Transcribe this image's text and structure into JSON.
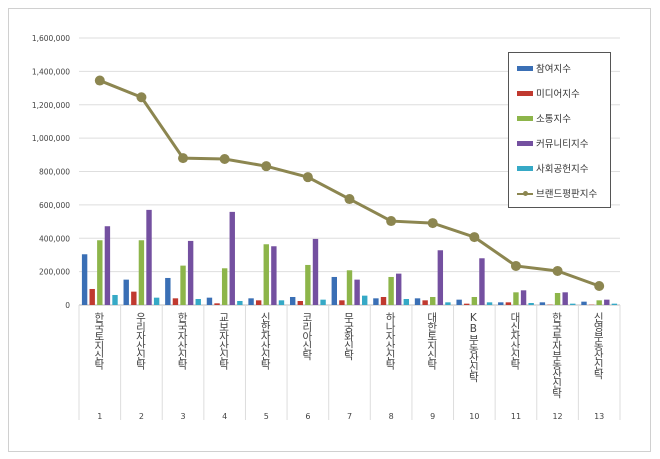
{
  "chart_data": {
    "type": "bar+line",
    "title": "",
    "xlabel": "",
    "ylabel": "",
    "ylim": [
      0,
      1600000
    ],
    "yticks": [
      "0",
      "200,000",
      "400,000",
      "600,000",
      "800,000",
      "1,000,000",
      "1,200,000",
      "1,400,000",
      "1,600,000"
    ],
    "ytick_values": [
      0,
      200000,
      400000,
      600000,
      800000,
      1000000,
      1200000,
      1400000,
      1600000
    ],
    "grid": true,
    "legend_position": "top-right",
    "categories": [
      "한국토지신탁",
      "우리자산신탁",
      "한국자산신탁",
      "교보자산신탁",
      "신한자산신탁",
      "코리아신탁",
      "무궁화신탁",
      "하나자산신탁",
      "대한토지신탁",
      "KB부동산신탁",
      "대신자산신탁",
      "한국투자부동산신탁",
      "신영부동산신탁"
    ],
    "category_numbers": [
      "1",
      "2",
      "3",
      "4",
      "5",
      "6",
      "7",
      "8",
      "9",
      "10",
      "11",
      "12",
      "13"
    ],
    "series": [
      {
        "name": "참여지수",
        "type": "bar",
        "color": "#3a6fb5",
        "values": [
          304000,
          152000,
          162000,
          44000,
          40000,
          48000,
          168000,
          40000,
          40000,
          32000,
          16000,
          16000,
          20000
        ]
      },
      {
        "name": "미디어지수",
        "type": "bar",
        "color": "#c0392f",
        "values": [
          96000,
          80000,
          40000,
          10000,
          28000,
          24000,
          28000,
          48000,
          28000,
          8000,
          16000,
          2000,
          2000
        ]
      },
      {
        "name": "소통지수",
        "type": "bar",
        "color": "#8db54a",
        "values": [
          388000,
          388000,
          236000,
          220000,
          364000,
          240000,
          208000,
          168000,
          48000,
          48000,
          76000,
          72000,
          28000
        ]
      },
      {
        "name": "커뮤니티지수",
        "type": "bar",
        "color": "#7450a0",
        "values": [
          472000,
          570000,
          384000,
          558000,
          352000,
          396000,
          152000,
          188000,
          328000,
          280000,
          88000,
          76000,
          32000
        ]
      },
      {
        "name": "사회공헌지수",
        "type": "bar",
        "color": "#36a9c6",
        "values": [
          60000,
          44000,
          36000,
          24000,
          28000,
          32000,
          56000,
          36000,
          16000,
          16000,
          12000,
          8000,
          8000
        ]
      },
      {
        "name": "브랜드평판지수",
        "type": "line",
        "color": "#8c8650",
        "values": [
          1345000,
          1245000,
          880000,
          875000,
          832000,
          766000,
          635000,
          503000,
          491000,
          407000,
          234000,
          204000,
          114000
        ]
      }
    ]
  }
}
